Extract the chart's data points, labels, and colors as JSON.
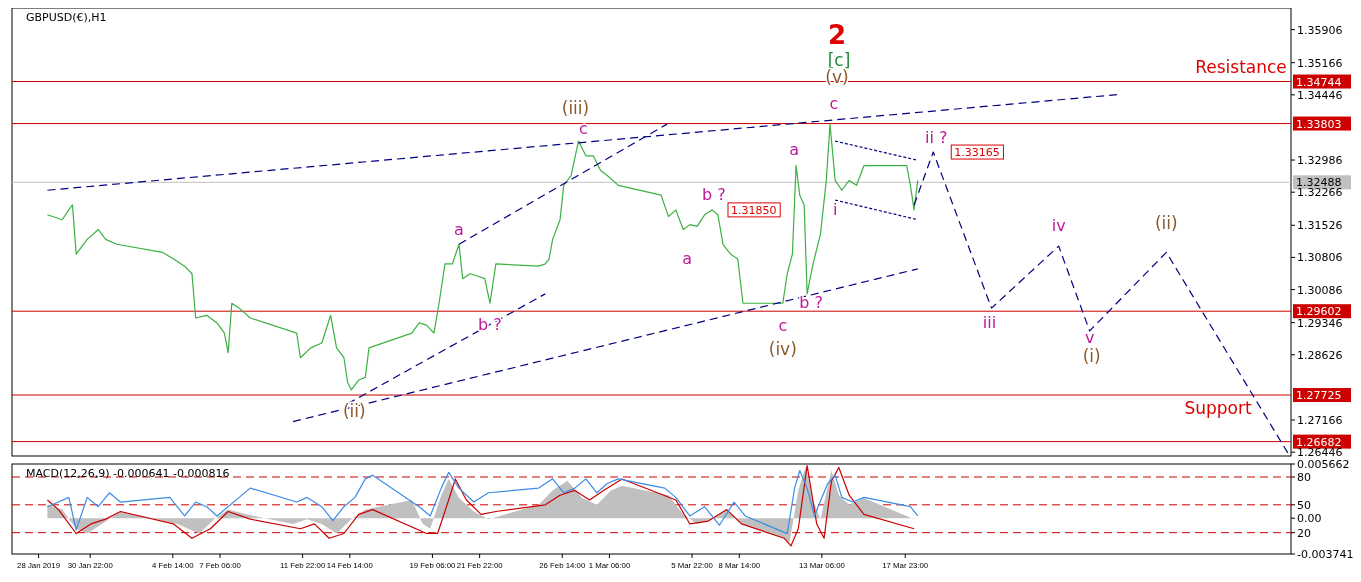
{
  "chart_data": [
    {
      "type": "line",
      "title": "GBPUSD(€),H1",
      "xlim": [
        "2019-01-26T12:00",
        "2019-04-08T18:00"
      ],
      "ylim": [
        1.2636,
        1.3639
      ],
      "tick_labels": "y",
      "yticks": [
        1.35906,
        1.35166,
        1.34446,
        1.32986,
        1.32266,
        1.31526,
        1.30806,
        1.30086,
        1.29346,
        1.28626,
        1.27166,
        1.26446
      ],
      "series": [
        {
          "color": "#3cb043",
          "x": [
            "2019-01-28T12:00",
            "2019-01-29T08:00",
            "2019-01-29T17:00",
            "2019-01-29T22:00",
            "2019-01-30T03:00",
            "2019-01-30T18:00",
            "2019-01-31T09:00",
            "2019-01-31T19:00",
            "2019-02-01T10:00",
            "2019-02-04T00:00",
            "2019-02-04T15:00",
            "2019-02-05T06:00",
            "2019-02-05T16:00",
            "2019-02-05T21:00",
            "2019-02-06T12:00",
            "2019-02-07T02:00",
            "2019-02-07T12:00",
            "2019-02-07T17:00",
            "2019-02-07T22:00",
            "2019-02-08T08:00",
            "2019-02-08T23:00",
            "2019-02-11T14:00",
            "2019-02-11T19:00",
            "2019-02-12T09:00",
            "2019-02-13T00:00",
            "2019-02-13T12:00",
            "2019-02-13T20:00",
            "2019-02-14T06:00",
            "2019-02-14T11:00",
            "2019-02-14T16:00",
            "2019-02-15T02:00",
            "2019-02-15T11:00",
            "2019-02-15T16:00",
            "2019-02-18T02:00",
            "2019-02-18T12:00",
            "2019-02-18T22:00",
            "2019-02-19T08:00",
            "2019-02-19T15:00",
            "2019-02-19T23:00",
            "2019-02-20T09:00",
            "2019-02-20T18:00",
            "2019-02-20T23:00",
            "2019-02-21T09:00",
            "2019-02-21T19:00",
            "2019-02-22T05:00",
            "2019-02-22T12:00",
            "2019-02-22T20:00",
            "2019-02-25T06:00",
            "2019-02-25T15:00",
            "2019-02-25T20:00",
            "2019-02-26T01:00",
            "2019-02-26T11:00",
            "2019-02-26T16:00",
            "2019-02-27T02:00",
            "2019-02-27T12:00",
            "2019-02-27T22:00",
            "2019-02-28T08:00",
            "2019-02-28T18:00",
            "2019-03-01T03:00",
            "2019-03-01T18:00",
            "2019-03-04T04:00",
            "2019-03-04T14:00",
            "2019-03-05T00:00",
            "2019-03-05T10:00",
            "2019-03-05T19:00",
            "2019-03-06T05:00",
            "2019-03-06T15:00",
            "2019-03-07T01:00",
            "2019-03-07T09:00",
            "2019-03-07T16:00",
            "2019-03-08T02:00",
            "2019-03-08T12:00",
            "2019-03-08T19:00",
            "2019-03-11T01:00",
            "2019-03-11T07:00",
            "2019-03-11T14:00",
            "2019-03-11T19:00",
            "2019-03-12T00:00",
            "2019-03-12T06:00",
            "2019-03-12T10:00",
            "2019-03-12T18:00",
            "2019-03-13T04:00",
            "2019-03-13T12:00",
            "2019-03-13T17:00",
            "2019-03-14T00:00",
            "2019-03-14T09:00",
            "2019-03-14T19:00",
            "2019-03-15T05:00",
            "2019-03-15T15:00",
            "2019-03-18T01:00",
            "2019-03-18T06:00",
            "2019-03-18T11:00",
            "2019-03-18T16:00"
          ],
          "values": [
            1.3176,
            1.3165,
            1.3187,
            1.3198,
            1.3088,
            1.3121,
            1.3143,
            1.3121,
            1.311,
            1.3092,
            1.3077,
            1.3061,
            1.3044,
            1.2945,
            1.2951,
            1.2934,
            1.2911,
            1.2867,
            1.2978,
            1.2967,
            1.2945,
            1.2911,
            1.2856,
            1.2878,
            1.2889,
            1.2951,
            1.2878,
            1.2856,
            1.2801,
            1.2784,
            1.2806,
            1.2812,
            1.2878,
            1.2911,
            1.2934,
            1.2929,
            1.2911,
            1.2978,
            1.3066,
            1.3066,
            1.311,
            1.3033,
            1.3044,
            1.3039,
            1.3033,
            1.2978,
            1.3066,
            1.3061,
            1.3066,
            1.3077,
            1.3121,
            1.3165,
            1.3242,
            1.3264,
            1.3341,
            1.3308,
            1.3308,
            1.3275,
            1.3264,
            1.3242,
            1.322,
            1.3172,
            1.3187,
            1.3143,
            1.3154,
            1.315,
            1.3176,
            1.3187,
            1.3176,
            1.311,
            1.3088,
            1.3077,
            1.2978,
            1.2978,
            1.3044,
            1.3088,
            1.3286,
            1.322,
            1.3198,
            1.2999,
            1.3066,
            1.3132,
            1.3253,
            1.3379,
            1.3253,
            1.3231,
            1.3253,
            1.3242,
            1.3286,
            1.3286,
            1.3242,
            1.3187,
            1.3253
          ]
        },
        {
          "color": "#000080",
          "line_style": "dashed",
          "x": [
            "2019-03-18T11:00",
            "2019-03-19T13:00",
            "2019-03-22T20:00",
            "2019-03-26T15:00",
            "2019-03-28T09:00",
            "2019-04-01T17:00",
            "2019-04-08T14:00"
          ],
          "values": [
            1.3198,
            1.33165,
            1.2967,
            1.3106,
            1.2916,
            1.3092,
            1.2642
          ]
        },
        {
          "color": "#000080",
          "line_style": "dashed",
          "x": [
            "2019-01-28T12:00",
            "2019-03-29T22:00"
          ],
          "values": [
            1.3231,
            1.3445
          ]
        },
        {
          "color": "#000080",
          "line_style": "dashed",
          "x": [
            "2019-02-11T09:00",
            "2019-03-18T16:00"
          ],
          "values": [
            1.2713,
            1.3055
          ]
        },
        {
          "color": "#000080",
          "line_style": "dashed",
          "x": [
            "2019-02-14T11:00",
            "2019-02-25T15:00"
          ],
          "values": [
            1.2753,
            1.2999
          ]
        },
        {
          "color": "#000080",
          "line_style": "dashed",
          "x": [
            "2019-02-20T18:00",
            "2019-03-04T12:00"
          ],
          "values": [
            1.311,
            1.3379
          ]
        },
        {
          "color": "#000080",
          "line_style": "dotted",
          "x": [
            "2019-03-14T00:00",
            "2019-03-18T16:00"
          ],
          "values": [
            1.3341,
            1.3298
          ]
        },
        {
          "color": "#000080",
          "line_style": "dotted",
          "x": [
            "2019-03-14T00:00",
            "2019-03-18T16:00"
          ],
          "values": [
            1.3209,
            1.3165
          ]
        }
      ],
      "ref_lines": [
        {
          "axis": "y",
          "value": 1.34744,
          "label": "1.34744",
          "color": "#cc0000"
        },
        {
          "axis": "y",
          "value": 1.33803,
          "label": "1.33803",
          "color": "#cc0000"
        },
        {
          "axis": "y",
          "value": 1.32488,
          "label": "1.32488",
          "color": "#c0c0c0"
        },
        {
          "axis": "y",
          "value": 1.29602,
          "label": "1.29602",
          "color": "#cc0000"
        },
        {
          "axis": "y",
          "value": 1.27725,
          "label": "1.27725",
          "color": "#cc0000"
        },
        {
          "axis": "y",
          "value": 1.26682,
          "label": "1.26682",
          "color": "#cc0000"
        }
      ],
      "annotations": [
        "2",
        "[c]",
        "(v)",
        "c",
        "(iii)",
        "c",
        "a",
        "b ?",
        "(ii)",
        "a",
        "b ?",
        "1.31850",
        "a",
        "c",
        "(iv)",
        "b ?",
        "i",
        "ii ?",
        "1.33165",
        "iii",
        "iv",
        "v",
        "(i)",
        "(ii)",
        "Resistance",
        "Support"
      ]
    },
    {
      "type": "line",
      "title": "MACD(12,26,9) -0.000641 -0.000816",
      "xlim": [
        "2019-01-26T12:00",
        "2019-04-08T18:00"
      ],
      "ylim": [
        -0.003741,
        0.005662
      ],
      "yticks": [
        0.005662,
        {
          "value": 0,
          "label": "0.00"
        },
        -0.003741
      ],
      "y2lim": [
        -3,
        94
      ],
      "y2ticks": [
        20,
        50,
        80
      ],
      "xticks": [
        {
          "value": "2019-01-28T00:00",
          "label": "28 Jan 2019"
        },
        {
          "value": "2019-01-30T22:00",
          "label": "30 Jan 22:00"
        },
        {
          "value": "2019-02-04T14:00",
          "label": "4 Feb 14:00"
        },
        {
          "value": "2019-02-07T06:00",
          "label": "7 Feb 06:00"
        },
        {
          "value": "2019-02-11T22:00",
          "label": "11 Feb 22:00"
        },
        {
          "value": "2019-02-14T14:00",
          "label": "14 Feb 14:00"
        },
        {
          "value": "2019-02-19T06:00",
          "label": "19 Feb 06:00"
        },
        {
          "value": "2019-02-21T22:00",
          "label": "21 Feb 22:00"
        },
        {
          "value": "2019-02-26T14:00",
          "label": "26 Feb 14:00"
        },
        {
          "value": "2019-03-01T06:00",
          "label": "1 Mar 06:00"
        },
        {
          "value": "2019-03-05T22:00",
          "label": "5 Mar 22:00"
        },
        {
          "value": "2019-03-08T14:00",
          "label": "8 Mar 14:00"
        },
        {
          "value": "2019-03-13T06:00",
          "label": "13 Mar 06:00"
        },
        {
          "value": "2019-03-17T23:00",
          "label": "17 Mar 23:00"
        }
      ],
      "series": [
        {
          "type": "area",
          "color": "#c0c0c0",
          "x": [
            "2019-01-28T12:00",
            "2019-01-29T08:00",
            "2019-01-30T03:00",
            "2019-01-30T18:00",
            "2019-01-31T14:00",
            "2019-02-01T15:00",
            "2019-02-04T20:00",
            "2019-02-06T02:00",
            "2019-02-06T22:00",
            "2019-02-07T17:00",
            "2019-02-08T18:00",
            "2019-02-11T09:00",
            "2019-02-12T04:00",
            "2019-02-13T00:00",
            "2019-02-13T20:00",
            "2019-02-14T16:00",
            "2019-02-15T11:00",
            "2019-02-18T02:00",
            "2019-02-18T17:00",
            "2019-02-19T03:00",
            "2019-02-19T18:00",
            "2019-02-20T04:00",
            "2019-02-20T18:00",
            "2019-02-21T14:00",
            "2019-02-22T10:00",
            "2019-02-25T06:00",
            "2019-02-26T01:00",
            "2019-02-26T21:00",
            "2019-02-27T17:00",
            "2019-02-28T13:00",
            "2019-03-01T08:00",
            "2019-03-01T23:00",
            "2019-03-04T14:00",
            "2019-03-05T10:00",
            "2019-03-06T05:00",
            "2019-03-07T01:00",
            "2019-03-07T21:00",
            "2019-03-08T17:00",
            "2019-03-11T03:00",
            "2019-03-11T10:00",
            "2019-03-11T22:00",
            "2019-03-12T08:00",
            "2019-03-12T18:00",
            "2019-03-13T04:00",
            "2019-03-13T19:00",
            "2019-03-14T05:00",
            "2019-03-14T19:00",
            "2019-03-15T15:00",
            "2019-03-18T11:00"
          ],
          "values": [
            0.0014,
            0.0009,
            -0.0011,
            -0.0016,
            -0.0006,
            0.0007,
            -0.0006,
            -0.0016,
            -0.0001,
            0.0009,
            0.0004,
            -0.0006,
            -0.0001,
            -0.0006,
            -0.0016,
            -0.0001,
            0.0009,
            0.0019,
            -0.0006,
            -0.0011,
            0.0024,
            0.0041,
            0.0021,
            0.0007,
            -0.0001,
            0.0014,
            0.0029,
            0.0039,
            0.0021,
            0.0014,
            0.0029,
            0.0034,
            0.0024,
            0.0004,
            -0.0006,
            -0.0001,
            0.0009,
            -0.0006,
            -0.0021,
            -0.0026,
            0.0029,
            0.0054,
            0.0019,
            -0.0001,
            0.005,
            0.0024,
            0.0014,
            0.0021,
            -0.0001
          ]
        },
        {
          "color": "#cc0000",
          "x": [
            "2019-01-28T12:00",
            "2019-01-29T03:00",
            "2019-01-30T03:00",
            "2019-01-30T23:00",
            "2019-01-31T19:00",
            "2019-02-01T15:00",
            "2019-02-04T15:00",
            "2019-02-05T16:00",
            "2019-02-06T17:00",
            "2019-02-07T17:00",
            "2019-02-08T23:00",
            "2019-02-11T19:00",
            "2019-02-12T14:00",
            "2019-02-13T10:00",
            "2019-02-14T06:00",
            "2019-02-15T02:00",
            "2019-02-15T21:00",
            "2019-02-18T22:00",
            "2019-02-19T13:00",
            "2019-02-20T04:00",
            "2019-02-20T13:00",
            "2019-02-21T04:00",
            "2019-02-22T00:00",
            "2019-02-22T20:00",
            "2019-02-25T15:00",
            "2019-02-26T11:00",
            "2019-02-27T07:00",
            "2019-02-28T03:00",
            "2019-02-28T22:00",
            "2019-03-01T23:00",
            "2019-03-05T00:00",
            "2019-03-05T19:00",
            "2019-03-06T20:00",
            "2019-03-07T21:00",
            "2019-03-08T17:00",
            "2019-03-11T03:00",
            "2019-03-11T12:00",
            "2019-03-11T22:00",
            "2019-03-12T10:00",
            "2019-03-12T23:00",
            "2019-03-13T09:00",
            "2019-03-13T19:00",
            "2019-03-14T05:00",
            "2019-03-14T19:00",
            "2019-03-15T15:00",
            "2019-03-18T11:00"
          ],
          "values": [
            0.0019,
            0.0009,
            -0.0016,
            -0.0006,
            -0.0001,
            0.0007,
            -0.0006,
            -0.0021,
            -0.0011,
            0.0007,
            -0.0001,
            -0.0011,
            -0.0006,
            -0.0021,
            -0.0016,
            0.0004,
            0.0009,
            -0.0016,
            -0.0016,
            0.0019,
            0.0041,
            0.0019,
            0.0004,
            0.0007,
            0.0014,
            0.0024,
            0.0029,
            0.0019,
            0.0029,
            0.0041,
            0.0019,
            -0.0006,
            -0.0003,
            0.0009,
            -0.0006,
            -0.0021,
            -0.0029,
            -0.0011,
            0.0055,
            -0.0006,
            -0.0021,
            0.0039,
            0.0053,
            0.0024,
            0.0004,
            -0.0011
          ]
        },
        {
          "color": "#3c8ce6",
          "axis": "y2",
          "x": [
            "2019-01-28T12:00",
            "2019-01-29T03:00",
            "2019-01-29T17:00",
            "2019-01-30T03:00",
            "2019-01-30T18:00",
            "2019-01-31T09:00",
            "2019-02-01T00:00",
            "2019-02-01T15:00",
            "2019-02-04T10:00",
            "2019-02-05T06:00",
            "2019-02-05T21:00",
            "2019-02-06T12:00",
            "2019-02-07T02:00",
            "2019-02-07T17:00",
            "2019-02-08T08:00",
            "2019-02-08T23:00",
            "2019-02-11T14:00",
            "2019-02-12T04:00",
            "2019-02-13T00:00",
            "2019-02-13T15:00",
            "2019-02-14T06:00",
            "2019-02-14T21:00",
            "2019-02-15T11:00",
            "2019-02-15T21:00",
            "2019-02-18T12:00",
            "2019-02-19T03:00",
            "2019-02-19T18:00",
            "2019-02-20T04:00",
            "2019-02-20T18:00",
            "2019-02-21T14:00",
            "2019-02-22T10:00",
            "2019-02-25T06:00",
            "2019-02-26T01:00",
            "2019-02-26T16:00",
            "2019-02-27T07:00",
            "2019-02-27T22:00",
            "2019-02-28T13:00",
            "2019-03-01T03:00",
            "2019-03-01T18:00",
            "2019-03-04T09:00",
            "2019-03-05T00:00",
            "2019-03-05T19:00",
            "2019-03-06T15:00",
            "2019-03-07T11:00",
            "2019-03-08T07:00",
            "2019-03-08T22:00",
            "2019-03-11T07:00",
            "2019-03-11T17:00",
            "2019-03-12T00:00",
            "2019-03-12T10:00",
            "2019-03-12T20:00",
            "2019-03-13T06:00",
            "2019-03-13T14:00",
            "2019-03-14T00:00",
            "2019-03-14T09:00",
            "2019-03-15T00:00",
            "2019-03-15T15:00",
            "2019-03-18T06:00",
            "2019-03-18T16:00"
          ],
          "values": [
            48,
            53,
            58,
            23,
            58,
            48,
            63,
            53,
            58,
            38,
            53,
            48,
            38,
            48,
            58,
            68,
            53,
            58,
            48,
            33,
            48,
            58,
            78,
            82,
            48,
            38,
            68,
            85,
            68,
            53,
            63,
            68,
            78,
            63,
            68,
            78,
            63,
            73,
            78,
            68,
            58,
            38,
            48,
            28,
            53,
            38,
            19,
            68,
            87,
            68,
            38,
            58,
            73,
            82,
            58,
            53,
            58,
            48,
            38
          ]
        }
      ],
      "ref_lines": [
        {
          "axis": "y2",
          "value": 80,
          "color": "#cc0000",
          "line_style": "dashed"
        },
        {
          "axis": "y2",
          "value": 50,
          "color": "#cc0000",
          "line_style": "dashed"
        },
        {
          "axis": "y2",
          "value": 20,
          "color": "#cc0000",
          "line_style": "dashed"
        }
      ]
    }
  ]
}
